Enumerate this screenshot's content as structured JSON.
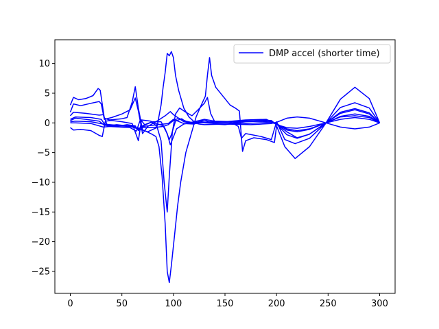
{
  "chart_data": {
    "type": "line",
    "title": "",
    "xlabel": "",
    "ylabel": "",
    "xlim": [
      -15,
      315
    ],
    "ylim": [
      -28.7,
      14.0
    ],
    "xticks": [
      0,
      50,
      100,
      150,
      200,
      250,
      300
    ],
    "yticks": [
      10,
      5,
      0,
      -5,
      -10,
      -15,
      -20,
      -25
    ],
    "grid": false,
    "legend": {
      "placement": "top-right",
      "label": "DMP accel (shorter time)"
    },
    "line_color": "#0000ff",
    "series": [
      {
        "name": "DMP accel (shorter time)",
        "points": [
          [
            0,
            3.0
          ],
          [
            3,
            4.3
          ],
          [
            8,
            3.9
          ],
          [
            15,
            4.1
          ],
          [
            22,
            4.6
          ],
          [
            27,
            5.8
          ],
          [
            29,
            5.5
          ],
          [
            33,
            0.8
          ],
          [
            38,
            0.5
          ],
          [
            50,
            0.7
          ],
          [
            55,
            0.9
          ],
          [
            60,
            3.5
          ],
          [
            63,
            6.1
          ],
          [
            66,
            2.5
          ],
          [
            70,
            -1.2
          ],
          [
            75,
            -1.5
          ],
          [
            80,
            -1.1
          ],
          [
            85,
            -0.7
          ],
          [
            90,
            -0.6
          ],
          [
            95,
            -0.3
          ],
          [
            100,
            0.4
          ],
          [
            105,
            0.8
          ],
          [
            112,
            0.3
          ],
          [
            120,
            0.0
          ],
          [
            125,
            -0.2
          ],
          [
            130,
            -0.3
          ],
          [
            150,
            -0.2
          ],
          [
            175,
            -0.3
          ],
          [
            195,
            -0.1
          ],
          [
            200,
            0.1
          ],
          [
            210,
            0.8
          ],
          [
            220,
            1.0
          ],
          [
            232,
            0.8
          ],
          [
            248,
            0.0
          ],
          [
            262,
            -0.7
          ],
          [
            276,
            -1.0
          ],
          [
            290,
            -0.7
          ],
          [
            300,
            0.0
          ]
        ]
      },
      {
        "name": "",
        "points": [
          [
            0,
            1.8
          ],
          [
            3,
            3.2
          ],
          [
            10,
            2.9
          ],
          [
            20,
            3.3
          ],
          [
            28,
            3.6
          ],
          [
            30,
            3.2
          ],
          [
            33,
            0.6
          ],
          [
            40,
            0.9
          ],
          [
            50,
            1.5
          ],
          [
            58,
            2.2
          ],
          [
            63,
            4.2
          ],
          [
            66,
            2.0
          ],
          [
            70,
            -1.8
          ],
          [
            75,
            -0.6
          ],
          [
            85,
            0.4
          ],
          [
            92,
            1.2
          ],
          [
            97,
            1.9
          ],
          [
            100,
            1.4
          ],
          [
            110,
            0.2
          ],
          [
            120,
            -0.1
          ],
          [
            135,
            0.2
          ],
          [
            150,
            0.2
          ],
          [
            170,
            0.5
          ],
          [
            190,
            0.6
          ],
          [
            200,
            -0.2
          ],
          [
            210,
            -2.0
          ],
          [
            220,
            -2.6
          ],
          [
            232,
            -1.9
          ],
          [
            248,
            0.0
          ],
          [
            262,
            1.8
          ],
          [
            276,
            2.4
          ],
          [
            290,
            1.7
          ],
          [
            300,
            0.0
          ]
        ]
      },
      {
        "name": "",
        "points": [
          [
            0,
            1.2
          ],
          [
            3,
            1.8
          ],
          [
            15,
            1.6
          ],
          [
            28,
            1.3
          ],
          [
            32,
            1.4
          ],
          [
            36,
            -0.5
          ],
          [
            45,
            -0.3
          ],
          [
            55,
            -0.5
          ],
          [
            62,
            -0.6
          ],
          [
            66,
            -1.2
          ],
          [
            70,
            -0.6
          ],
          [
            75,
            -0.5
          ],
          [
            85,
            -0.3
          ],
          [
            95,
            -0.1
          ],
          [
            100,
            0.6
          ],
          [
            110,
            -0.1
          ],
          [
            120,
            -0.2
          ],
          [
            130,
            0.5
          ],
          [
            140,
            -0.2
          ],
          [
            150,
            -0.3
          ],
          [
            170,
            0.2
          ],
          [
            190,
            0.3
          ],
          [
            200,
            -0.2
          ],
          [
            210,
            -1.5
          ],
          [
            220,
            -2.5
          ],
          [
            232,
            -1.9
          ],
          [
            248,
            0.0
          ],
          [
            262,
            1.6
          ],
          [
            276,
            2.2
          ],
          [
            290,
            1.5
          ],
          [
            300,
            0.0
          ]
        ]
      },
      {
        "name": "",
        "points": [
          [
            0,
            0.4
          ],
          [
            5,
            0.8
          ],
          [
            15,
            0.6
          ],
          [
            28,
            0.3
          ],
          [
            33,
            -0.4
          ],
          [
            45,
            -0.6
          ],
          [
            55,
            -0.3
          ],
          [
            63,
            -0.5
          ],
          [
            66,
            -1.3
          ],
          [
            70,
            -0.5
          ],
          [
            80,
            0.2
          ],
          [
            88,
            0.2
          ],
          [
            92,
            -1.0
          ],
          [
            96,
            -2.8
          ],
          [
            98,
            -2.0
          ],
          [
            102,
            0.3
          ],
          [
            108,
            0.7
          ],
          [
            112,
            0.2
          ],
          [
            118,
            0.0
          ],
          [
            125,
            0.2
          ],
          [
            135,
            0.1
          ],
          [
            155,
            0.0
          ],
          [
            175,
            0.3
          ],
          [
            195,
            0.2
          ],
          [
            200,
            -0.1
          ],
          [
            210,
            -1.2
          ],
          [
            220,
            -1.5
          ],
          [
            232,
            -1.1
          ],
          [
            248,
            0.0
          ],
          [
            262,
            1.1
          ],
          [
            276,
            1.5
          ],
          [
            290,
            1.1
          ],
          [
            300,
            0.0
          ]
        ]
      },
      {
        "name": "",
        "points": [
          [
            0,
            0.0
          ],
          [
            5,
            0.0
          ],
          [
            20,
            -0.1
          ],
          [
            32,
            -0.7
          ],
          [
            38,
            -0.6
          ],
          [
            48,
            -0.7
          ],
          [
            58,
            -0.8
          ],
          [
            64,
            -1.4
          ],
          [
            68,
            0.6
          ],
          [
            72,
            -0.3
          ],
          [
            78,
            0.1
          ],
          [
            85,
            -0.2
          ],
          [
            90,
            -0.5
          ],
          [
            94,
            -1.8
          ],
          [
            97,
            -3.7
          ],
          [
            99,
            -2.8
          ],
          [
            103,
            -1.0
          ],
          [
            110,
            -0.2
          ],
          [
            120,
            0.2
          ],
          [
            130,
            0.6
          ],
          [
            140,
            0.3
          ],
          [
            160,
            0.2
          ],
          [
            175,
            0.5
          ],
          [
            195,
            0.4
          ],
          [
            200,
            -0.3
          ],
          [
            210,
            -0.8
          ],
          [
            220,
            -0.9
          ],
          [
            232,
            -0.6
          ],
          [
            248,
            0.0
          ],
          [
            262,
            0.6
          ],
          [
            276,
            0.9
          ],
          [
            290,
            0.6
          ],
          [
            300,
            0.0
          ]
        ]
      },
      {
        "name": "",
        "points": [
          [
            0,
            -0.8
          ],
          [
            3,
            -1.2
          ],
          [
            10,
            -1.1
          ],
          [
            20,
            -1.3
          ],
          [
            28,
            -2.1
          ],
          [
            31,
            -2.3
          ],
          [
            34,
            0.3
          ],
          [
            40,
            0.4
          ],
          [
            50,
            0.2
          ],
          [
            60,
            -0.1
          ],
          [
            66,
            -3.0
          ],
          [
            69,
            0.5
          ],
          [
            73,
            0.4
          ],
          [
            78,
            0.3
          ],
          [
            84,
            -0.6
          ],
          [
            88,
            -3.0
          ],
          [
            91,
            -10.0
          ],
          [
            94,
            -15.0
          ],
          [
            96,
            -9.0
          ],
          [
            99,
            -1.5
          ],
          [
            102,
            1.5
          ],
          [
            106,
            2.5
          ],
          [
            112,
            1.8
          ],
          [
            118,
            1.2
          ],
          [
            125,
            2.4
          ],
          [
            130,
            3.3
          ],
          [
            133,
            4.3
          ],
          [
            136,
            1.6
          ],
          [
            140,
            0.2
          ],
          [
            155,
            0.2
          ],
          [
            163,
            -0.6
          ],
          [
            166,
            -2.6
          ],
          [
            170,
            -1.8
          ],
          [
            185,
            -2.3
          ],
          [
            195,
            -2.8
          ],
          [
            200,
            0.2
          ],
          [
            208,
            -2.8
          ],
          [
            218,
            -3.5
          ],
          [
            232,
            -2.6
          ],
          [
            248,
            0.0
          ],
          [
            262,
            2.6
          ],
          [
            276,
            3.4
          ],
          [
            290,
            2.5
          ],
          [
            300,
            0.0
          ]
        ]
      },
      {
        "name": "",
        "points": [
          [
            0,
            0.2
          ],
          [
            5,
            0.3
          ],
          [
            20,
            0.2
          ],
          [
            32,
            -0.2
          ],
          [
            45,
            -0.4
          ],
          [
            55,
            -0.5
          ],
          [
            62,
            -0.6
          ],
          [
            66,
            -1.0
          ],
          [
            72,
            -1.3
          ],
          [
            78,
            -1.8
          ],
          [
            83,
            -2.3
          ],
          [
            86,
            -4.0
          ],
          [
            89,
            -9.0
          ],
          [
            92,
            -17.0
          ],
          [
            94,
            -25.0
          ],
          [
            96,
            -26.9
          ],
          [
            98,
            -24.0
          ],
          [
            101,
            -19.0
          ],
          [
            104,
            -14.0
          ],
          [
            107,
            -10.0
          ],
          [
            112,
            -5.0
          ],
          [
            117,
            -2.0
          ],
          [
            122,
            1.0
          ],
          [
            127,
            3.0
          ],
          [
            131,
            4.5
          ],
          [
            133,
            8.0
          ],
          [
            135,
            11.0
          ],
          [
            137,
            8.0
          ],
          [
            141,
            6.0
          ],
          [
            148,
            4.5
          ],
          [
            155,
            3.0
          ],
          [
            160,
            2.5
          ],
          [
            164,
            2.0
          ],
          [
            167,
            -4.8
          ],
          [
            170,
            -3.0
          ],
          [
            178,
            -2.5
          ],
          [
            190,
            -2.8
          ],
          [
            198,
            -3.3
          ],
          [
            200,
            -0.5
          ],
          [
            208,
            -4.0
          ],
          [
            218,
            -6.0
          ],
          [
            232,
            -4.0
          ],
          [
            248,
            0.0
          ],
          [
            262,
            4.0
          ],
          [
            276,
            6.0
          ],
          [
            290,
            4.1
          ],
          [
            300,
            0.0
          ]
        ]
      },
      {
        "name": "",
        "points": [
          [
            0,
            0.6
          ],
          [
            5,
            1.0
          ],
          [
            20,
            0.9
          ],
          [
            30,
            0.6
          ],
          [
            34,
            -0.4
          ],
          [
            45,
            -0.5
          ],
          [
            58,
            -0.6
          ],
          [
            64,
            -0.9
          ],
          [
            70,
            -0.8
          ],
          [
            78,
            -0.8
          ],
          [
            84,
            -0.7
          ],
          [
            88,
            3.0
          ],
          [
            90,
            6.0
          ],
          [
            92,
            8.5
          ],
          [
            94,
            11.7
          ],
          [
            96,
            11.3
          ],
          [
            98,
            12.0
          ],
          [
            100,
            11.0
          ],
          [
            102,
            8.0
          ],
          [
            105,
            5.5
          ],
          [
            110,
            2.5
          ],
          [
            115,
            1.0
          ],
          [
            120,
            0.2
          ],
          [
            130,
            0.0
          ],
          [
            150,
            -0.2
          ],
          [
            170,
            -0.1
          ],
          [
            195,
            0.1
          ],
          [
            200,
            -0.2
          ],
          [
            210,
            -1.0
          ],
          [
            220,
            -1.3
          ],
          [
            232,
            -1.0
          ],
          [
            248,
            0.0
          ],
          [
            262,
            1.0
          ],
          [
            276,
            1.2
          ],
          [
            290,
            0.9
          ],
          [
            300,
            0.0
          ]
        ]
      }
    ]
  }
}
